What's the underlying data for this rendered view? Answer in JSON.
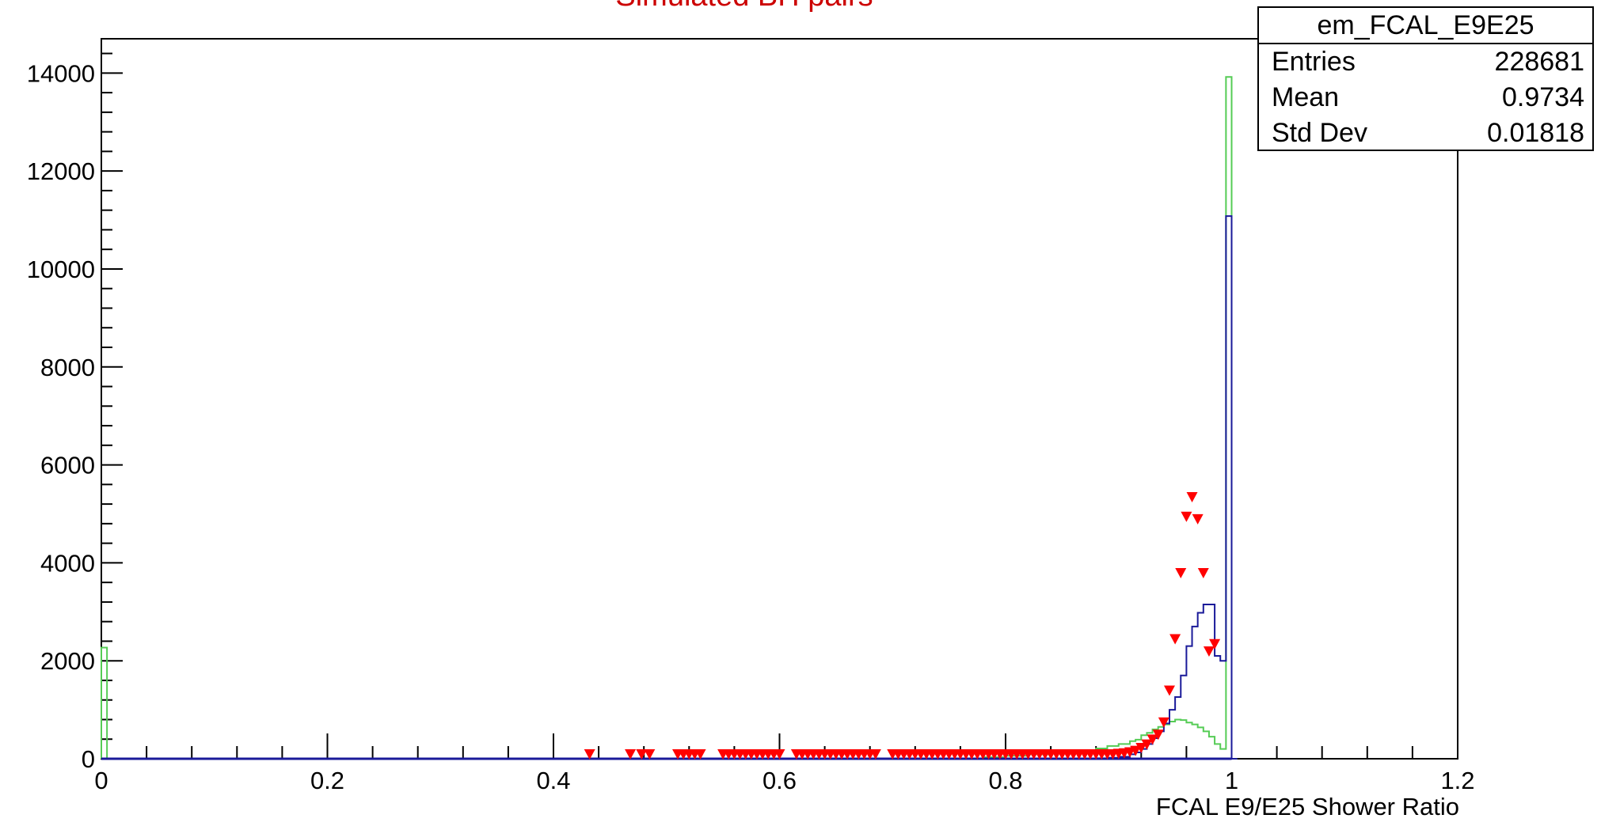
{
  "chart_data": {
    "type": "histogram",
    "title": "Simulated BH pairs",
    "xlabel": "FCAL E9/E25 Shower Ratio",
    "ylabel": "",
    "xlim": [
      0,
      1.2
    ],
    "ylim": [
      0,
      14700
    ],
    "x_ticks": [
      "0",
      "0.2",
      "0.4",
      "0.6",
      "0.8",
      "1",
      "1.2"
    ],
    "y_ticks": [
      "0",
      "2000",
      "4000",
      "6000",
      "8000",
      "10000",
      "12000",
      "14000"
    ],
    "grid": false,
    "stats_box": {
      "name": "em_FCAL_E9E25",
      "rows": [
        {
          "label": "Entries",
          "value": "228681"
        },
        {
          "label": "Mean",
          "value": "0.9734"
        },
        {
          "label": "Std Dev",
          "value": "0.01818"
        }
      ]
    },
    "series": [
      {
        "color": "#55cc55",
        "style": "step",
        "bin_width": 0.005,
        "points": [
          [
            0.0,
            2270
          ],
          [
            0.005,
            0
          ],
          [
            0.78,
            30
          ],
          [
            0.8,
            60
          ],
          [
            0.82,
            90
          ],
          [
            0.84,
            120
          ],
          [
            0.86,
            160
          ],
          [
            0.88,
            210
          ],
          [
            0.89,
            260
          ],
          [
            0.9,
            300
          ],
          [
            0.91,
            360
          ],
          [
            0.915,
            390
          ],
          [
            0.92,
            480
          ],
          [
            0.925,
            530
          ],
          [
            0.93,
            600
          ],
          [
            0.935,
            650
          ],
          [
            0.94,
            700
          ],
          [
            0.945,
            760
          ],
          [
            0.95,
            800
          ],
          [
            0.955,
            790
          ],
          [
            0.96,
            740
          ],
          [
            0.965,
            700
          ],
          [
            0.97,
            640
          ],
          [
            0.975,
            560
          ],
          [
            0.98,
            450
          ],
          [
            0.985,
            300
          ],
          [
            0.99,
            200
          ],
          [
            0.995,
            13920
          ],
          [
            1.0,
            0
          ]
        ]
      },
      {
        "color": "#1a1a99",
        "style": "step",
        "bin_width": 0.005,
        "points": [
          [
            0.88,
            10
          ],
          [
            0.89,
            20
          ],
          [
            0.9,
            40
          ],
          [
            0.91,
            90
          ],
          [
            0.915,
            130
          ],
          [
            0.92,
            200
          ],
          [
            0.925,
            300
          ],
          [
            0.93,
            420
          ],
          [
            0.935,
            560
          ],
          [
            0.94,
            720
          ],
          [
            0.945,
            1000
          ],
          [
            0.95,
            1260
          ],
          [
            0.955,
            1700
          ],
          [
            0.96,
            2300
          ],
          [
            0.965,
            2700
          ],
          [
            0.97,
            2980
          ],
          [
            0.975,
            3150
          ],
          [
            0.98,
            3150
          ],
          [
            0.985,
            2100
          ],
          [
            0.99,
            2000
          ],
          [
            0.995,
            11080
          ],
          [
            1.0,
            0
          ]
        ]
      },
      {
        "color": "#ff0000",
        "style": "markers",
        "marker": "triangle-down",
        "points": [
          [
            0.432,
            0
          ],
          [
            0.468,
            0
          ],
          [
            0.478,
            0
          ],
          [
            0.485,
            0
          ],
          [
            0.51,
            0
          ],
          [
            0.515,
            0
          ],
          [
            0.52,
            0
          ],
          [
            0.525,
            0
          ],
          [
            0.53,
            0
          ],
          [
            0.55,
            0
          ],
          [
            0.555,
            0
          ],
          [
            0.56,
            0
          ],
          [
            0.565,
            0
          ],
          [
            0.57,
            0
          ],
          [
            0.575,
            0
          ],
          [
            0.58,
            0
          ],
          [
            0.585,
            0
          ],
          [
            0.59,
            0
          ],
          [
            0.595,
            0
          ],
          [
            0.6,
            0
          ],
          [
            0.615,
            0
          ],
          [
            0.62,
            0
          ],
          [
            0.625,
            0
          ],
          [
            0.63,
            0
          ],
          [
            0.635,
            0
          ],
          [
            0.64,
            0
          ],
          [
            0.645,
            0
          ],
          [
            0.65,
            0
          ],
          [
            0.655,
            0
          ],
          [
            0.66,
            0
          ],
          [
            0.665,
            0
          ],
          [
            0.67,
            0
          ],
          [
            0.675,
            0
          ],
          [
            0.68,
            0
          ],
          [
            0.685,
            0
          ],
          [
            0.7,
            0
          ],
          [
            0.705,
            0
          ],
          [
            0.71,
            0
          ],
          [
            0.715,
            0
          ],
          [
            0.72,
            0
          ],
          [
            0.725,
            0
          ],
          [
            0.73,
            0
          ],
          [
            0.735,
            0
          ],
          [
            0.74,
            0
          ],
          [
            0.745,
            0
          ],
          [
            0.75,
            0
          ],
          [
            0.755,
            0
          ],
          [
            0.76,
            0
          ],
          [
            0.765,
            0
          ],
          [
            0.77,
            0
          ],
          [
            0.775,
            0
          ],
          [
            0.78,
            0
          ],
          [
            0.785,
            0
          ],
          [
            0.79,
            0
          ],
          [
            0.795,
            0
          ],
          [
            0.8,
            0
          ],
          [
            0.805,
            0
          ],
          [
            0.81,
            0
          ],
          [
            0.815,
            0
          ],
          [
            0.82,
            0
          ],
          [
            0.825,
            0
          ],
          [
            0.83,
            0
          ],
          [
            0.835,
            0
          ],
          [
            0.84,
            0
          ],
          [
            0.845,
            0
          ],
          [
            0.85,
            0
          ],
          [
            0.855,
            0
          ],
          [
            0.86,
            0
          ],
          [
            0.865,
            0
          ],
          [
            0.87,
            0
          ],
          [
            0.875,
            0
          ],
          [
            0.88,
            0
          ],
          [
            0.885,
            0
          ],
          [
            0.89,
            0
          ],
          [
            0.895,
            0
          ],
          [
            0.9,
            10
          ],
          [
            0.905,
            20
          ],
          [
            0.91,
            40
          ],
          [
            0.915,
            70
          ],
          [
            0.92,
            130
          ],
          [
            0.925,
            200
          ],
          [
            0.93,
            300
          ],
          [
            0.935,
            400
          ],
          [
            0.94,
            650
          ],
          [
            0.945,
            1300
          ],
          [
            0.95,
            2350
          ],
          [
            0.955,
            3700
          ],
          [
            0.96,
            4850
          ],
          [
            0.965,
            5250
          ],
          [
            0.97,
            4800
          ],
          [
            0.975,
            3700
          ],
          [
            0.98,
            2100
          ],
          [
            0.985,
            2250
          ]
        ]
      }
    ]
  }
}
